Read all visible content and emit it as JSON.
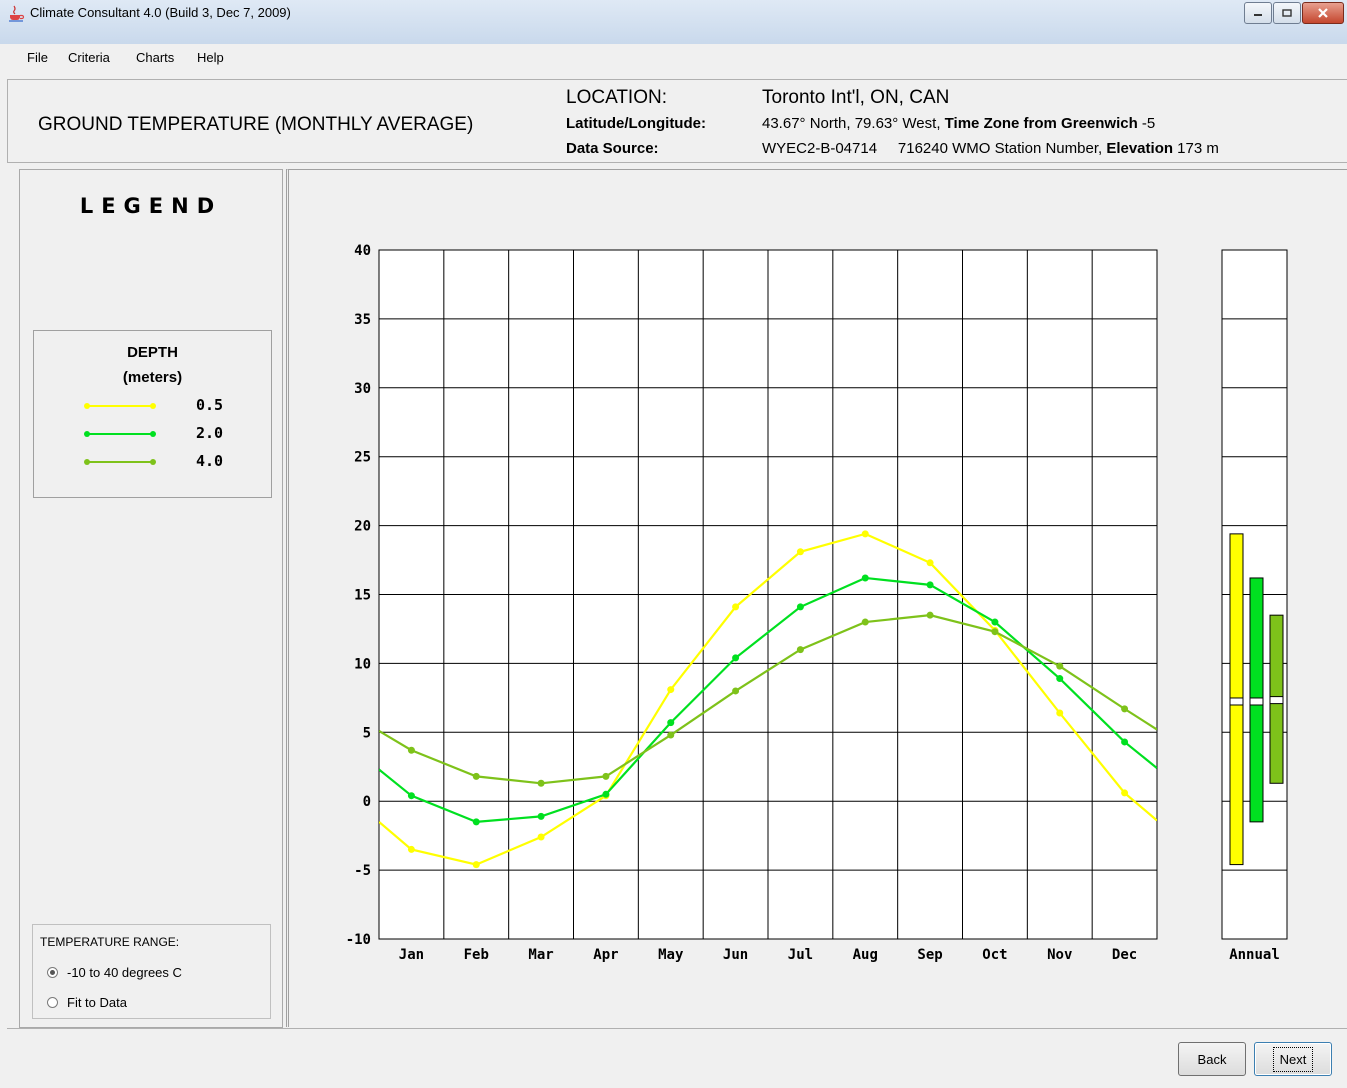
{
  "window": {
    "title": "Climate Consultant 4.0 (Build 3, Dec 7, 2009)",
    "app_icon": "java-cup-icon",
    "controls": [
      "minimize-icon",
      "maximize-icon",
      "close-icon"
    ]
  },
  "menu": [
    "File",
    "Criteria",
    "Charts",
    "Help"
  ],
  "header": {
    "chart_title": "GROUND TEMPERATURE (MONTHLY AVERAGE)",
    "location_label": "LOCATION:",
    "location_value": "Toronto Int'l, ON, CAN",
    "latlong_label": "Latitude/Longitude:",
    "latlong_value": "43.67° North, 79.63° West, ",
    "timezone_label": "Time Zone from Greenwich",
    "timezone_value": " -5",
    "source_label": "Data Source:",
    "source_value": "WYEC2-B-04714     716240 WMO Station Number, ",
    "elevation_label": "Elevation",
    "elevation_value": " 173 m"
  },
  "legend": {
    "title": "LEGEND",
    "depth_title": "DEPTH",
    "depth_units": "(meters)",
    "entries": [
      {
        "label": "0.5",
        "color": "#ffff00"
      },
      {
        "label": "2.0",
        "color": "#00e020"
      },
      {
        "label": "4.0",
        "color": "#7ec21a"
      }
    ]
  },
  "temperature_range": {
    "title": "TEMPERATURE RANGE:",
    "options": [
      {
        "label": "-10 to 40 degrees C",
        "checked": true
      },
      {
        "label": "Fit to Data",
        "checked": false
      }
    ]
  },
  "buttons": {
    "back": "Back",
    "next": "Next"
  },
  "chart_data": {
    "type": "line",
    "title": "GROUND TEMPERATURE (MONTHLY AVERAGE)",
    "categories": [
      "Jan",
      "Feb",
      "Mar",
      "Apr",
      "May",
      "Jun",
      "Jul",
      "Aug",
      "Sep",
      "Oct",
      "Nov",
      "Dec"
    ],
    "ylim": [
      -10,
      40
    ],
    "yticks": [
      40,
      35,
      30,
      25,
      20,
      15,
      10,
      5,
      0,
      -5,
      -10
    ],
    "grid": true,
    "series": [
      {
        "name": "0.5",
        "color": "#ffff00",
        "values": [
          -3.5,
          -4.6,
          -2.6,
          0.4,
          8.1,
          14.1,
          18.1,
          19.4,
          17.3,
          12.4,
          6.4,
          0.6
        ],
        "edge_start": -1.5,
        "edge_end": -1.4
      },
      {
        "name": "2.0",
        "color": "#00e020",
        "values": [
          0.4,
          -1.5,
          -1.1,
          0.5,
          5.7,
          10.4,
          14.1,
          16.2,
          15.7,
          13.0,
          8.9,
          4.3
        ],
        "edge_start": 2.3,
        "edge_end": 2.4
      },
      {
        "name": "4.0",
        "color": "#7ec21a",
        "values": [
          3.7,
          1.8,
          1.3,
          1.8,
          4.8,
          8.0,
          11.0,
          13.0,
          13.5,
          12.3,
          9.8,
          6.7
        ],
        "edge_start": 5.1,
        "edge_end": 5.2
      }
    ],
    "annual": {
      "label": "Annual",
      "bars": [
        {
          "name": "0.5",
          "color": "#ffff00",
          "min": -4.6,
          "max": 19.4,
          "mean": 7.2
        },
        {
          "name": "2.0",
          "color": "#00e020",
          "min": -1.5,
          "max": 16.2,
          "mean": 7.2
        },
        {
          "name": "4.0",
          "color": "#7ec21a",
          "min": 1.3,
          "max": 13.5,
          "mean": 7.3
        }
      ]
    }
  }
}
